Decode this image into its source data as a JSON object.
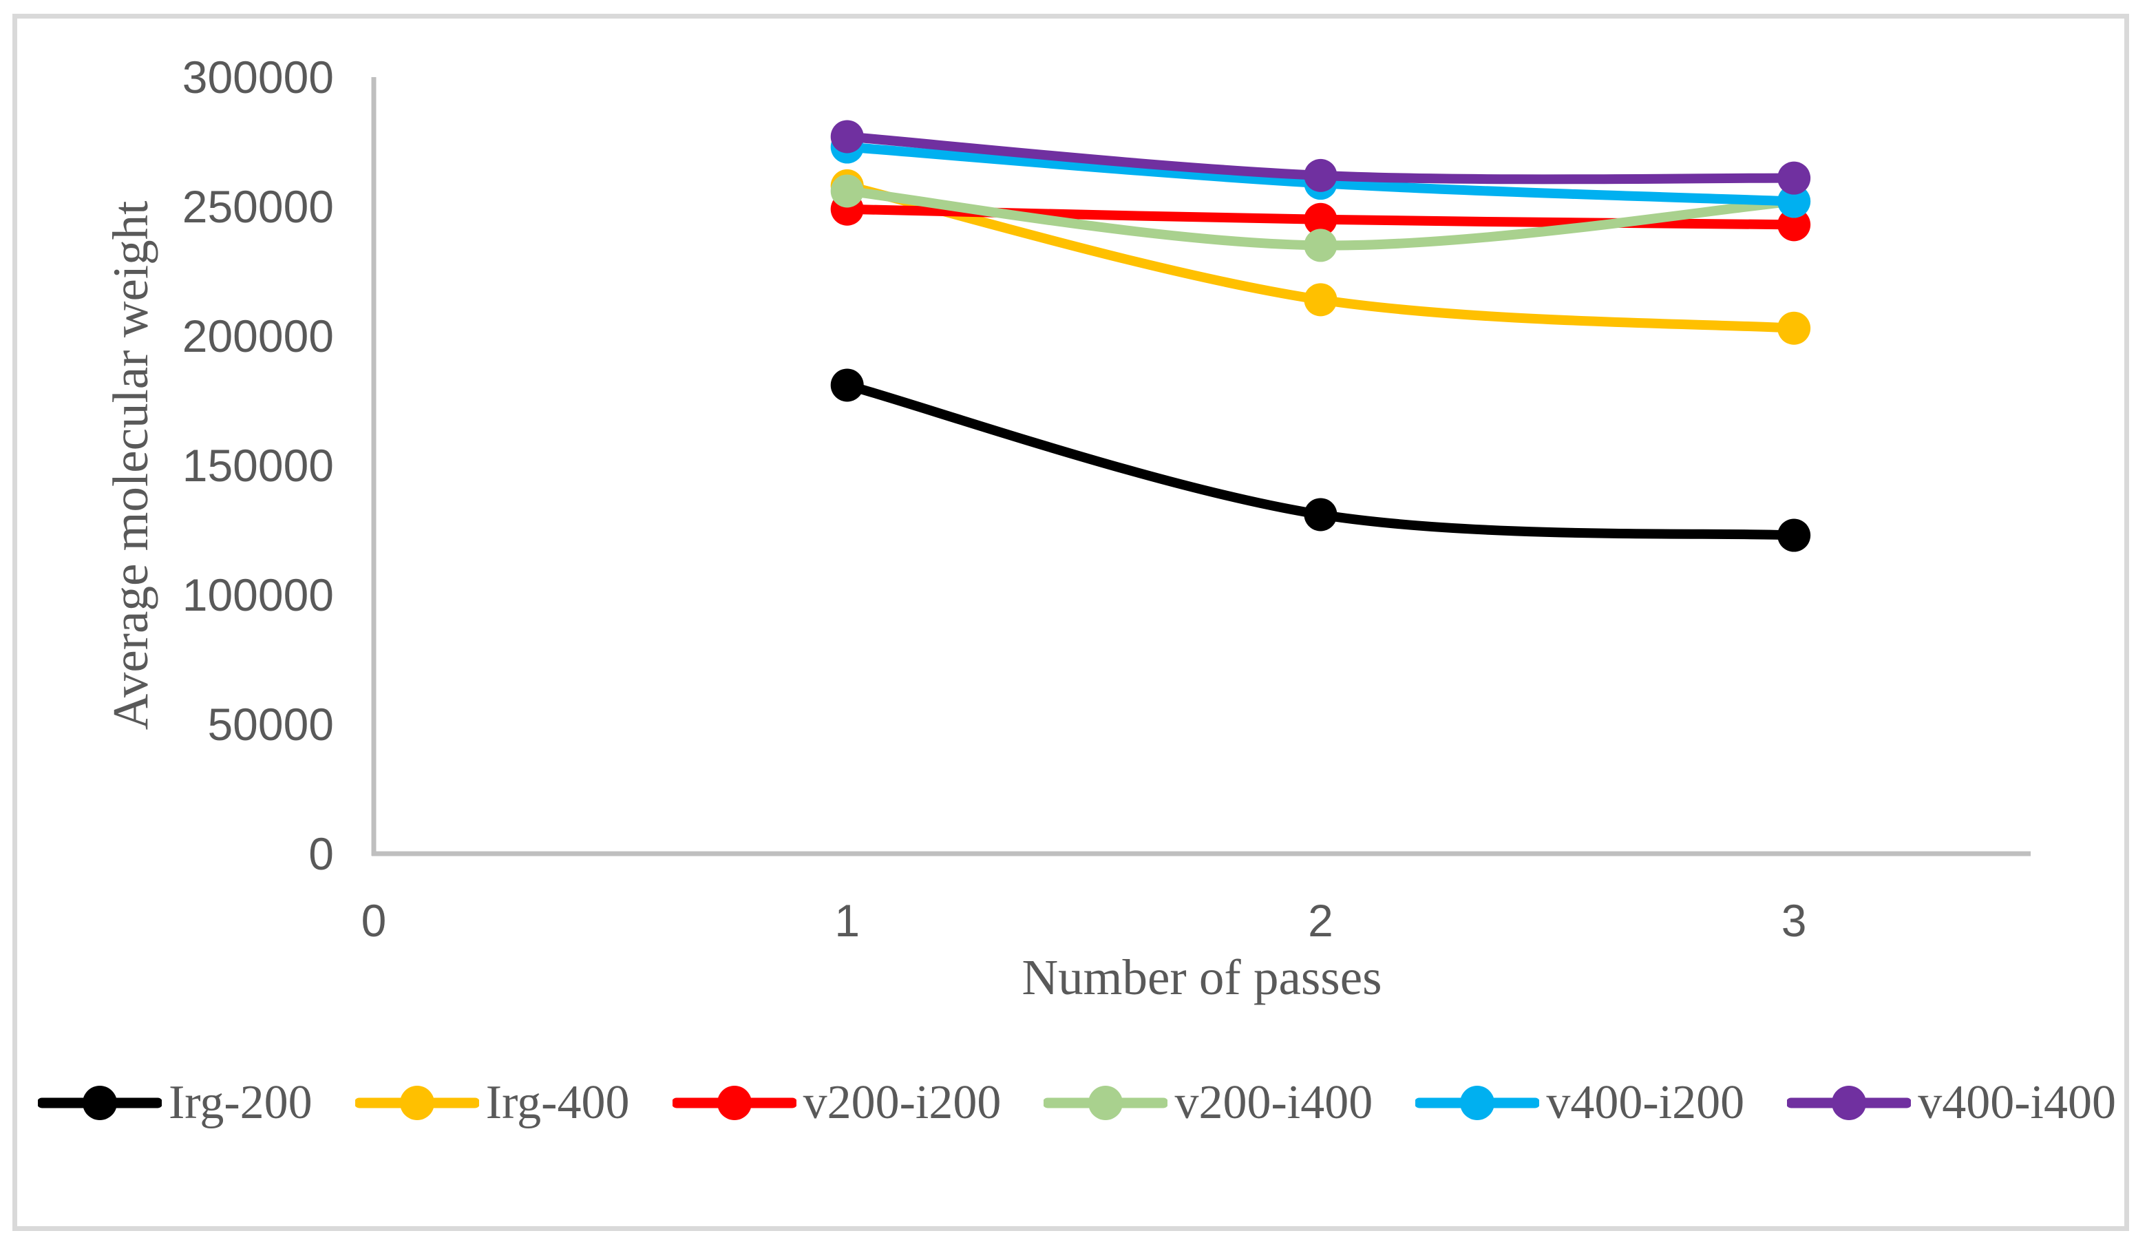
{
  "figure": {
    "background": "#FFFFFF",
    "border_color": "#D9D9D9"
  },
  "chart_data": {
    "type": "line",
    "title": "",
    "xlabel": "Number of passes",
    "ylabel": "Average molecular weight",
    "x": [
      1,
      2,
      3
    ],
    "series": [
      {
        "name": "Irg-200",
        "color": "#000000",
        "values": [
          181000,
          131000,
          123000
        ]
      },
      {
        "name": "Irg-400",
        "color": "#FFC000",
        "values": [
          258000,
          214000,
          203000
        ]
      },
      {
        "name": "v200-i200",
        "color": "#FF0000",
        "values": [
          249000,
          245000,
          243000
        ]
      },
      {
        "name": "v200-i400",
        "color": "#A9D18E",
        "values": [
          256000,
          235000,
          252000
        ]
      },
      {
        "name": "v400-i200",
        "color": "#00B0F0",
        "values": [
          273000,
          259000,
          252000
        ]
      },
      {
        "name": "v400-i400",
        "color": "#7030A0",
        "values": [
          277000,
          262000,
          261000
        ]
      }
    ],
    "x_ticks": [
      0,
      1,
      2,
      3
    ],
    "y_ticks": [
      0,
      50000,
      100000,
      150000,
      200000,
      250000,
      300000
    ],
    "xlim": [
      0,
      3.5
    ],
    "ylim": [
      0,
      300000
    ],
    "grid": false,
    "smooth": true,
    "legend_position": "bottom",
    "axis_color": "#BFBFBF",
    "text_color": "#595959"
  }
}
